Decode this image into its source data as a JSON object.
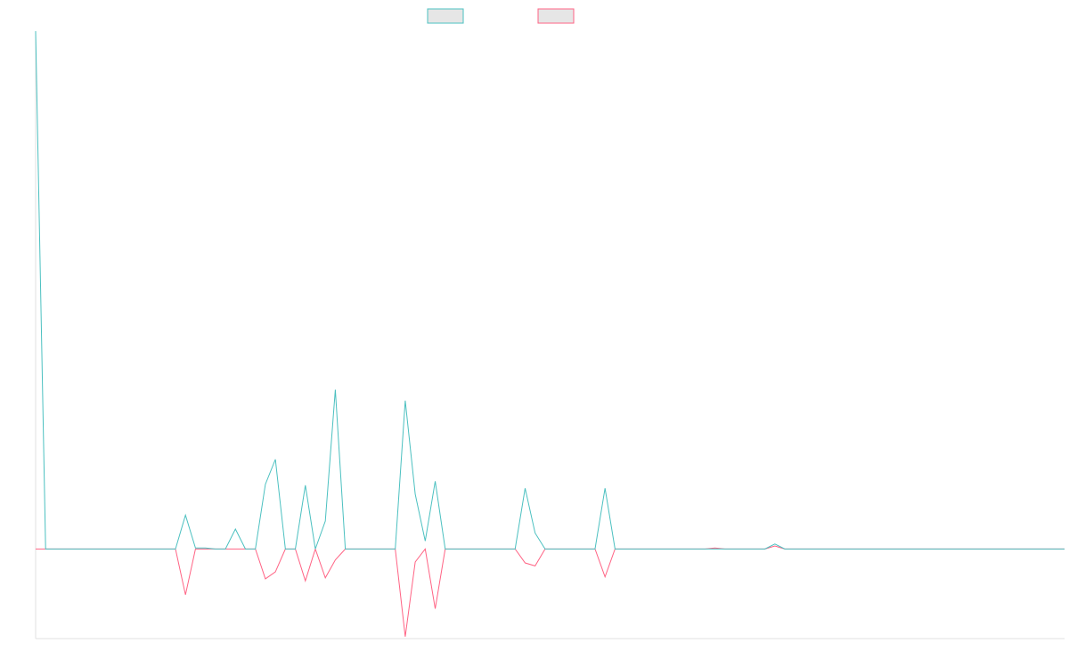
{
  "chart_data": {
    "type": "line",
    "title": "",
    "xlabel": "",
    "ylabel": "",
    "legend": {
      "placement": "top-center"
    },
    "grid": false,
    "ylim": [
      -90,
      520
    ],
    "x_count": 104,
    "series": [
      {
        "color": "#4bc0c0",
        "values": [
          520,
          0,
          0,
          0,
          0,
          0,
          0,
          0,
          0,
          0,
          0,
          0,
          0,
          0,
          0,
          34,
          1,
          1,
          0,
          0,
          20,
          0,
          0,
          65,
          90,
          0,
          0,
          64,
          0,
          28,
          160,
          0,
          0,
          0,
          0,
          0,
          0,
          149,
          55,
          8,
          68,
          0,
          0,
          0,
          0,
          0,
          0,
          0,
          0,
          61,
          16,
          0,
          0,
          0,
          0,
          0,
          0,
          61,
          0,
          0,
          0,
          0,
          0,
          0,
          0,
          0,
          0,
          0,
          0,
          0,
          0,
          0,
          0,
          0,
          5,
          0,
          0,
          0,
          0,
          0,
          0,
          0,
          0,
          0,
          0,
          0,
          0,
          0,
          0,
          0,
          0,
          0,
          0,
          0,
          0,
          0,
          0,
          0,
          0,
          0,
          0,
          0,
          0,
          0
        ]
      },
      {
        "color": "#ff6384",
        "values": [
          0,
          0,
          0,
          0,
          0,
          0,
          0,
          0,
          0,
          0,
          0,
          0,
          0,
          0,
          0,
          -46,
          0,
          0,
          0,
          0,
          0,
          0,
          0,
          -30,
          -23,
          0,
          0,
          -32,
          0,
          -29,
          -11,
          0,
          0,
          0,
          0,
          0,
          0,
          -88,
          -13,
          0,
          -60,
          0,
          0,
          0,
          0,
          0,
          0,
          0,
          0,
          -14,
          -17,
          0,
          0,
          0,
          0,
          0,
          0,
          -28,
          0,
          0,
          0,
          0,
          0,
          0,
          0,
          0,
          0,
          0,
          1,
          0,
          0,
          0,
          0,
          0,
          3,
          0,
          0,
          0,
          0,
          0,
          0,
          0,
          0,
          0,
          0,
          0,
          0,
          0,
          0,
          0,
          0,
          0,
          0,
          0,
          0,
          0,
          0,
          0,
          0,
          0,
          0,
          0,
          0,
          0
        ]
      }
    ]
  }
}
